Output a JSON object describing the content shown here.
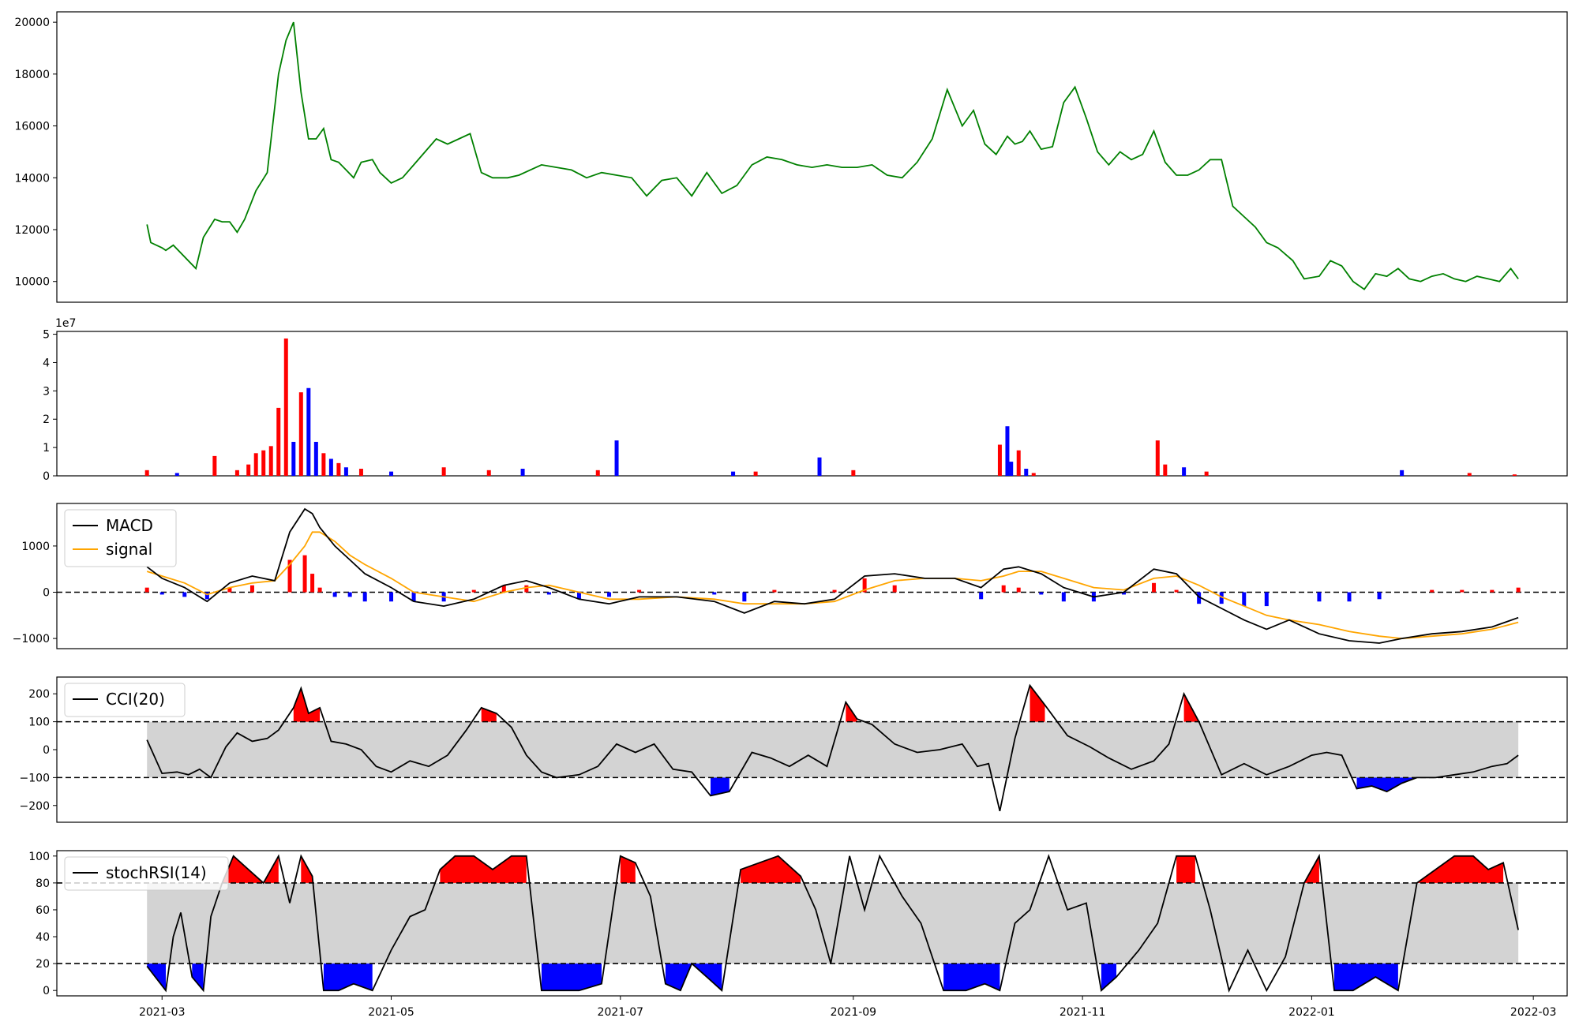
{
  "chart_data": [
    {
      "type": "line",
      "panel": "price",
      "series": [
        {
          "color": "#008000",
          "x": [
            "2021-02-25",
            "2021-02-26",
            "2021-03-01",
            "2021-03-02",
            "2021-03-04",
            "2021-03-10",
            "2021-03-12",
            "2021-03-15",
            "2021-03-17",
            "2021-03-19",
            "2021-03-21",
            "2021-03-23",
            "2021-03-26",
            "2021-03-29",
            "2021-04-01",
            "2021-04-03",
            "2021-04-05",
            "2021-04-07",
            "2021-04-09",
            "2021-04-11",
            "2021-04-13",
            "2021-04-15",
            "2021-04-17",
            "2021-04-19",
            "2021-04-21",
            "2021-04-23",
            "2021-04-26",
            "2021-04-28",
            "2021-05-01",
            "2021-05-04",
            "2021-05-07",
            "2021-05-10",
            "2021-05-13",
            "2021-05-16",
            "2021-05-19",
            "2021-05-22",
            "2021-05-25",
            "2021-05-28",
            "2021-06-01",
            "2021-06-04",
            "2021-06-07",
            "2021-06-10",
            "2021-06-14",
            "2021-06-18",
            "2021-06-22",
            "2021-06-26",
            "2021-06-30",
            "2021-07-04",
            "2021-07-08",
            "2021-07-12",
            "2021-07-16",
            "2021-07-20",
            "2021-07-24",
            "2021-07-28",
            "2021-08-01",
            "2021-08-05",
            "2021-08-09",
            "2021-08-13",
            "2021-08-17",
            "2021-08-21",
            "2021-08-25",
            "2021-08-29",
            "2021-09-02",
            "2021-09-06",
            "2021-09-10",
            "2021-09-14",
            "2021-09-18",
            "2021-09-22",
            "2021-09-26",
            "2021-09-30",
            "2021-10-03",
            "2021-10-06",
            "2021-10-09",
            "2021-10-12",
            "2021-10-14",
            "2021-10-16",
            "2021-10-18",
            "2021-10-21",
            "2021-10-24",
            "2021-10-27",
            "2021-10-30",
            "2021-11-02",
            "2021-11-05",
            "2021-11-08",
            "2021-11-11",
            "2021-11-14",
            "2021-11-17",
            "2021-11-20",
            "2021-11-23",
            "2021-11-26",
            "2021-11-29",
            "2021-12-02",
            "2021-12-05",
            "2021-12-08",
            "2021-12-11",
            "2021-12-14",
            "2021-12-17",
            "2021-12-20",
            "2021-12-23",
            "2021-12-27",
            "2021-12-30",
            "2022-01-03",
            "2022-01-06",
            "2022-01-09",
            "2022-01-12",
            "2022-01-15",
            "2022-01-18",
            "2022-01-21",
            "2022-01-24",
            "2022-01-27",
            "2022-01-30",
            "2022-02-02",
            "2022-02-05",
            "2022-02-08",
            "2022-02-11",
            "2022-02-14",
            "2022-02-17",
            "2022-02-20",
            "2022-02-23",
            "2022-02-25"
          ],
          "y": [
            12200,
            11500,
            11300,
            11200,
            11400,
            10500,
            11700,
            12400,
            12300,
            12300,
            11900,
            12400,
            13500,
            14200,
            18000,
            19300,
            20000,
            17300,
            15500,
            15500,
            15900,
            14700,
            14600,
            14300,
            14000,
            14600,
            14700,
            14200,
            13800,
            14000,
            14500,
            15000,
            15500,
            15300,
            15500,
            15700,
            14200,
            14000,
            14000,
            14100,
            14300,
            14500,
            14400,
            14300,
            14000,
            14200,
            14100,
            14000,
            13300,
            13900,
            14000,
            13300,
            14200,
            13400,
            13700,
            14500,
            14800,
            14700,
            14500,
            14400,
            14500,
            14400,
            14400,
            14500,
            14100,
            14000,
            14600,
            15500,
            17400,
            16000,
            16600,
            15300,
            14900,
            15600,
            15300,
            15400,
            15800,
            15100,
            15200,
            16900,
            17500,
            16300,
            15000,
            14500,
            15000,
            14700,
            14900,
            15800,
            14600,
            14100,
            14100,
            14300,
            14700,
            14700,
            12900,
            12500,
            12100,
            11500,
            11300,
            10800,
            10100,
            10200,
            10800,
            10600,
            10000,
            9700,
            10300,
            10200,
            10500,
            10100,
            10000,
            10200,
            10300,
            10100,
            10000,
            10200,
            10100,
            10000,
            10500,
            10100
          ],
          "labels_note": ""
        }
      ],
      "ylim": [
        9200,
        20400
      ],
      "yticks": [
        "10000",
        "12000",
        "14000",
        "16000",
        "18000",
        "20000"
      ]
    },
    {
      "type": "bar",
      "panel": "volume",
      "offset_text": "1e7",
      "yticks": [
        "0",
        "1",
        "2",
        "3",
        "4",
        "5"
      ],
      "ylim": [
        0,
        5.1
      ],
      "up_color": "#ff0000",
      "down_color": "#0000ff",
      "x": [
        "2021-02-25",
        "2021-03-05",
        "2021-03-15",
        "2021-03-21",
        "2021-03-24",
        "2021-03-26",
        "2021-03-28",
        "2021-03-30",
        "2021-04-01",
        "2021-04-03",
        "2021-04-05",
        "2021-04-07",
        "2021-04-09",
        "2021-04-11",
        "2021-04-13",
        "2021-04-15",
        "2021-04-17",
        "2021-04-19",
        "2021-04-23",
        "2021-05-01",
        "2021-05-15",
        "2021-05-27",
        "2021-06-05",
        "2021-06-25",
        "2021-06-30",
        "2021-07-31",
        "2021-08-06",
        "2021-08-23",
        "2021-09-01",
        "2021-10-10",
        "2021-10-12",
        "2021-10-13",
        "2021-10-15",
        "2021-10-17",
        "2021-10-19",
        "2021-11-21",
        "2021-11-23",
        "2021-11-28",
        "2021-12-04",
        "2022-01-25",
        "2022-02-12",
        "2022-02-24"
      ],
      "values": [
        0.2,
        0.1,
        0.7,
        0.2,
        0.4,
        0.8,
        0.9,
        1.05,
        2.4,
        4.85,
        1.2,
        2.95,
        3.1,
        1.2,
        0.8,
        0.6,
        0.45,
        0.3,
        0.25,
        0.15,
        0.3,
        0.2,
        0.25,
        0.2,
        1.25,
        0.15,
        0.15,
        0.65,
        0.2,
        1.1,
        1.75,
        0.5,
        0.9,
        0.25,
        0.1,
        1.25,
        0.4,
        0.3,
        0.15,
        0.2,
        0.1,
        0.05
      ],
      "up": [
        true,
        false,
        true,
        true,
        true,
        true,
        true,
        true,
        true,
        true,
        false,
        true,
        false,
        false,
        true,
        false,
        true,
        false,
        true,
        false,
        true,
        true,
        false,
        true,
        false,
        false,
        true,
        false,
        true,
        true,
        false,
        false,
        true,
        false,
        true,
        true,
        true,
        false,
        true,
        false,
        true,
        true
      ]
    },
    {
      "type": "line",
      "panel": "macd",
      "legend": [
        {
          "name": "MACD",
          "color": "#000000"
        },
        {
          "name": "signal",
          "color": "#ffa500"
        }
      ],
      "legend_placement": "upper-left",
      "yticks": [
        "−1000",
        "0",
        "1000"
      ],
      "ylim": [
        -1220,
        1920
      ],
      "zero_line": "dashed",
      "x": [
        "2021-02-25",
        "2021-03-01",
        "2021-03-07",
        "2021-03-13",
        "2021-03-19",
        "2021-03-25",
        "2021-03-31",
        "2021-04-04",
        "2021-04-08",
        "2021-04-10",
        "2021-04-12",
        "2021-04-16",
        "2021-04-20",
        "2021-04-24",
        "2021-05-01",
        "2021-05-07",
        "2021-05-15",
        "2021-05-23",
        "2021-05-31",
        "2021-06-06",
        "2021-06-12",
        "2021-06-20",
        "2021-06-28",
        "2021-07-06",
        "2021-07-16",
        "2021-07-26",
        "2021-08-03",
        "2021-08-11",
        "2021-08-19",
        "2021-08-27",
        "2021-09-04",
        "2021-09-12",
        "2021-09-20",
        "2021-09-28",
        "2021-10-05",
        "2021-10-11",
        "2021-10-15",
        "2021-10-21",
        "2021-10-27",
        "2021-11-04",
        "2021-11-12",
        "2021-11-20",
        "2021-11-26",
        "2021-12-02",
        "2021-12-08",
        "2021-12-14",
        "2021-12-20",
        "2021-12-26",
        "2022-01-03",
        "2022-01-11",
        "2022-01-19",
        "2022-01-25",
        "2022-02-02",
        "2022-02-10",
        "2022-02-18",
        "2022-02-25"
      ],
      "macd": [
        550,
        300,
        100,
        -200,
        200,
        350,
        250,
        1300,
        1800,
        1700,
        1400,
        1000,
        700,
        400,
        100,
        -200,
        -300,
        -150,
        150,
        250,
        100,
        -150,
        -250,
        -100,
        -100,
        -200,
        -450,
        -200,
        -250,
        -150,
        350,
        400,
        300,
        300,
        100,
        500,
        550,
        400,
        100,
        -100,
        0,
        500,
        400,
        -100,
        -350,
        -600,
        -800,
        -600,
        -900,
        -1050,
        -1100,
        -1000,
        -900,
        -850,
        -750,
        -550
      ],
      "signal": [
        450,
        350,
        200,
        -50,
        100,
        200,
        250,
        600,
        1000,
        1300,
        1300,
        1100,
        800,
        600,
        300,
        0,
        -100,
        -200,
        0,
        100,
        150,
        0,
        -150,
        -150,
        -100,
        -150,
        -250,
        -250,
        -250,
        -200,
        50,
        250,
        300,
        300,
        250,
        350,
        450,
        450,
        300,
        100,
        50,
        300,
        350,
        150,
        -100,
        -300,
        -500,
        -600,
        -700,
        -850,
        -950,
        -1000,
        -950,
        -900,
        -800,
        -650
      ]
    },
    {
      "type": "line",
      "panel": "cci",
      "legend": [
        {
          "name": "CCI(20)",
          "color": "#000000"
        }
      ],
      "legend_placement": "upper-left",
      "yticks": [
        "−200",
        "−100",
        "0",
        "100",
        "200"
      ],
      "ylim": [
        -260,
        260
      ],
      "bands": [
        -100,
        100
      ],
      "x": [
        "2021-02-25",
        "2021-03-01",
        "2021-03-05",
        "2021-03-08",
        "2021-03-11",
        "2021-03-14",
        "2021-03-18",
        "2021-03-21",
        "2021-03-25",
        "2021-03-29",
        "2021-04-01",
        "2021-04-05",
        "2021-04-07",
        "2021-04-09",
        "2021-04-12",
        "2021-04-15",
        "2021-04-19",
        "2021-04-23",
        "2021-04-27",
        "2021-05-01",
        "2021-05-06",
        "2021-05-11",
        "2021-05-16",
        "2021-05-21",
        "2021-05-25",
        "2021-05-29",
        "2021-06-02",
        "2021-06-06",
        "2021-06-10",
        "2021-06-14",
        "2021-06-20",
        "2021-06-25",
        "2021-06-30",
        "2021-07-05",
        "2021-07-10",
        "2021-07-15",
        "2021-07-20",
        "2021-07-25",
        "2021-07-30",
        "2021-08-05",
        "2021-08-10",
        "2021-08-15",
        "2021-08-20",
        "2021-08-25",
        "2021-08-30",
        "2021-09-02",
        "2021-09-06",
        "2021-09-12",
        "2021-09-18",
        "2021-09-24",
        "2021-09-30",
        "2021-10-04",
        "2021-10-07",
        "2021-10-10",
        "2021-10-14",
        "2021-10-18",
        "2021-10-22",
        "2021-10-28",
        "2021-11-03",
        "2021-11-08",
        "2021-11-14",
        "2021-11-20",
        "2021-11-24",
        "2021-11-28",
        "2021-12-02",
        "2021-12-08",
        "2021-12-14",
        "2021-12-20",
        "2021-12-26",
        "2022-01-01",
        "2022-01-05",
        "2022-01-09",
        "2022-01-13",
        "2022-01-17",
        "2022-01-21",
        "2022-01-25",
        "2022-01-29",
        "2022-02-03",
        "2022-02-08",
        "2022-02-13",
        "2022-02-18",
        "2022-02-22",
        "2022-02-25"
      ],
      "values": [
        35,
        -85,
        -80,
        -90,
        -70,
        -100,
        10,
        60,
        30,
        40,
        70,
        150,
        220,
        130,
        150,
        30,
        20,
        0,
        -60,
        -80,
        -40,
        -60,
        -20,
        70,
        150,
        130,
        80,
        -20,
        -80,
        -100,
        -90,
        -60,
        20,
        -10,
        20,
        -70,
        -80,
        -165,
        -150,
        -10,
        -30,
        -60,
        -20,
        -60,
        170,
        110,
        90,
        20,
        -10,
        0,
        20,
        -60,
        -50,
        -220,
        40,
        230,
        160,
        50,
        10,
        -30,
        -70,
        -40,
        20,
        200,
        100,
        -90,
        -50,
        -90,
        -60,
        -20,
        -10,
        -20,
        -140,
        -130,
        -150,
        -120,
        -100,
        -100,
        -90,
        -80,
        -60,
        -50,
        -20
      ]
    },
    {
      "type": "line",
      "panel": "stochrsi",
      "legend": [
        {
          "name": "stochRSI(14)",
          "color": "#000000"
        }
      ],
      "legend_placement": "upper-left",
      "yticks": [
        "0",
        "20",
        "40",
        "60",
        "80",
        "100"
      ],
      "ylim": [
        -4,
        104
      ],
      "bands": [
        20,
        80
      ],
      "x": [
        "2021-02-25",
        "2021-03-02",
        "2021-03-04",
        "2021-03-06",
        "2021-03-09",
        "2021-03-12",
        "2021-03-14",
        "2021-03-17",
        "2021-03-20",
        "2021-03-24",
        "2021-03-28",
        "2021-04-01",
        "2021-04-04",
        "2021-04-07",
        "2021-04-10",
        "2021-04-13",
        "2021-04-17",
        "2021-04-21",
        "2021-04-26",
        "2021-05-01",
        "2021-05-06",
        "2021-05-10",
        "2021-05-14",
        "2021-05-18",
        "2021-05-23",
        "2021-05-28",
        "2021-06-02",
        "2021-06-06",
        "2021-06-10",
        "2021-06-15",
        "2021-06-20",
        "2021-06-26",
        "2021-07-01",
        "2021-07-05",
        "2021-07-09",
        "2021-07-13",
        "2021-07-17",
        "2021-07-20",
        "2021-07-24",
        "2021-07-28",
        "2021-08-02",
        "2021-08-07",
        "2021-08-12",
        "2021-08-18",
        "2021-08-22",
        "2021-08-26",
        "2021-08-31",
        "2021-09-04",
        "2021-09-08",
        "2021-09-14",
        "2021-09-19",
        "2021-09-25",
        "2021-10-01",
        "2021-10-06",
        "2021-10-10",
        "2021-10-14",
        "2021-10-18",
        "2021-10-23",
        "2021-10-28",
        "2021-11-02",
        "2021-11-06",
        "2021-11-10",
        "2021-11-16",
        "2021-11-21",
        "2021-11-26",
        "2021-12-01",
        "2021-12-05",
        "2021-12-10",
        "2021-12-15",
        "2021-12-20",
        "2021-12-25",
        "2021-12-30",
        "2022-01-03",
        "2022-01-07",
        "2022-01-12",
        "2022-01-18",
        "2022-01-24",
        "2022-01-29",
        "2022-02-03",
        "2022-02-08",
        "2022-02-13",
        "2022-02-17",
        "2022-02-21",
        "2022-02-25"
      ],
      "values": [
        18,
        0,
        40,
        58,
        10,
        0,
        55,
        80,
        100,
        90,
        80,
        100,
        65,
        100,
        85,
        0,
        0,
        5,
        0,
        30,
        55,
        60,
        90,
        100,
        100,
        90,
        100,
        100,
        0,
        0,
        0,
        5,
        100,
        95,
        70,
        5,
        0,
        20,
        10,
        0,
        90,
        95,
        100,
        85,
        60,
        20,
        100,
        60,
        100,
        70,
        50,
        0,
        0,
        5,
        0,
        50,
        60,
        100,
        60,
        65,
        0,
        10,
        30,
        50,
        100,
        100,
        60,
        0,
        30,
        0,
        25,
        80,
        100,
        0,
        0,
        10,
        0,
        80,
        90,
        100,
        100,
        90,
        95,
        45
      ]
    }
  ],
  "x_axis": {
    "ticks": [
      "2021-03",
      "2021-05",
      "2021-07",
      "2021-09",
      "2021-11",
      "2022-01",
      "2022-03"
    ]
  }
}
